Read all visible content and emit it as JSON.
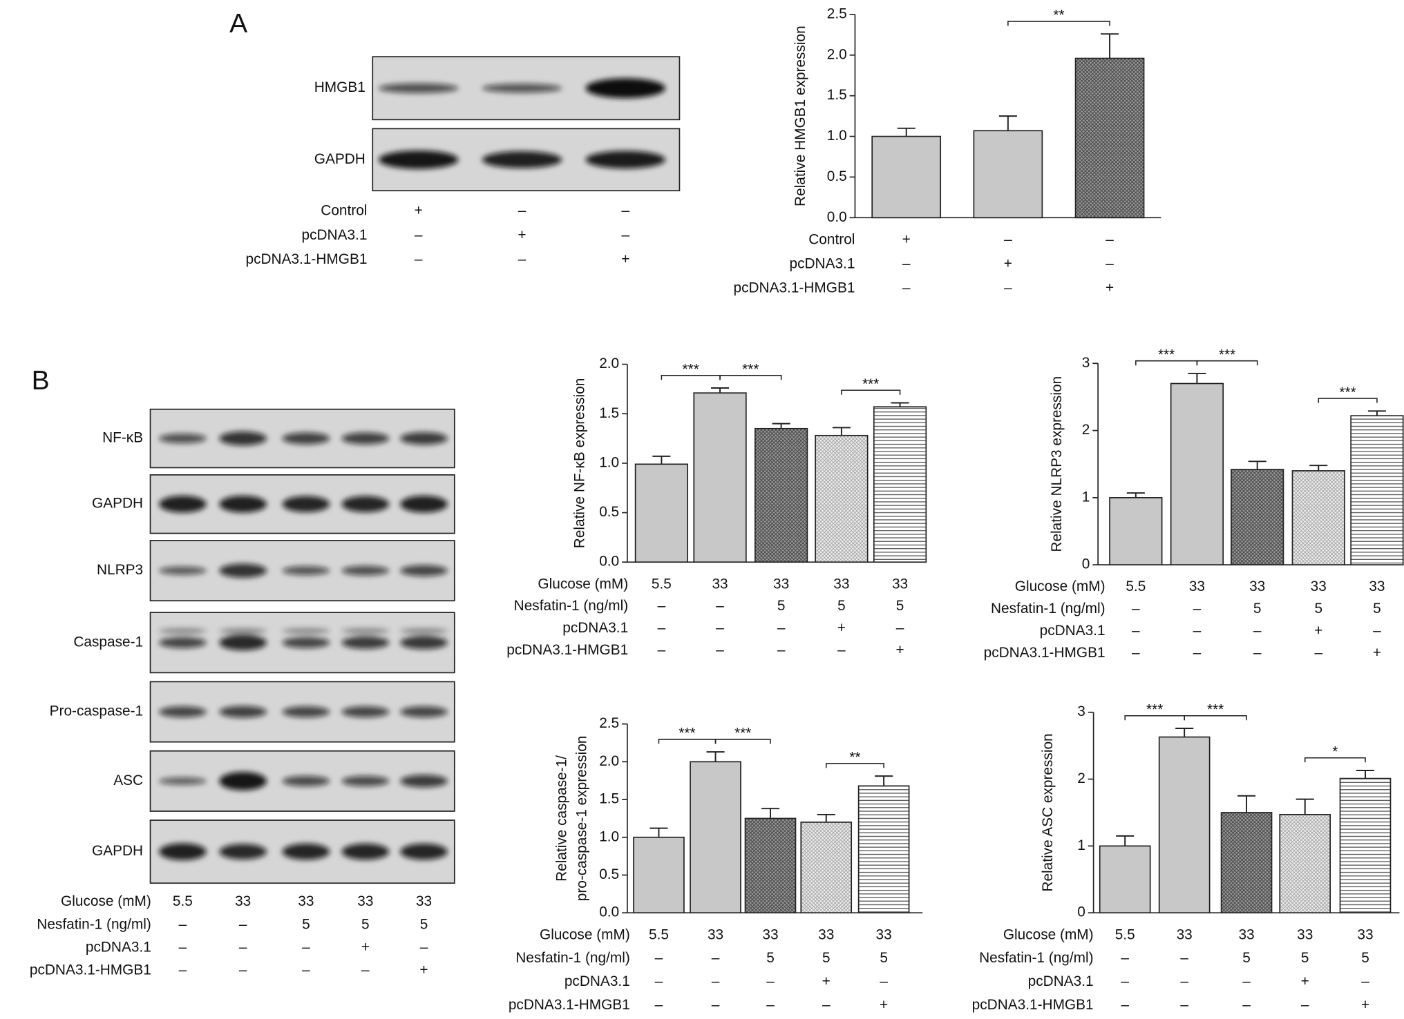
{
  "panel_labels": [
    "A",
    "B"
  ],
  "blot_a": {
    "rows": [
      "HMGB1",
      "GAPDH"
    ],
    "conditions": [
      {
        "name": "Control",
        "marks": [
          "+",
          "–",
          "–"
        ]
      },
      {
        "name": "pcDNA3.1",
        "marks": [
          "–",
          "+",
          "–"
        ]
      },
      {
        "name": "pcDNA3.1-HMGB1",
        "marks": [
          "–",
          "–",
          "+"
        ]
      }
    ]
  },
  "blot_b": {
    "rows": [
      "NF-κB",
      "GAPDH",
      "NLRP3",
      "Caspase-1",
      "Pro-caspase-1",
      "ASC",
      "GAPDH"
    ],
    "conditions": [
      {
        "name": "Glucose (mM)",
        "marks": [
          "5.5",
          "33",
          "33",
          "33",
          "33"
        ]
      },
      {
        "name": "Nesfatin-1 (ng/ml)",
        "marks": [
          "–",
          "–",
          "5",
          "5",
          "5"
        ]
      },
      {
        "name": "pcDNA3.1",
        "marks": [
          "–",
          "–",
          "–",
          "+",
          "–"
        ]
      },
      {
        "name": "pcDNA3.1-HMGB1",
        "marks": [
          "–",
          "–",
          "–",
          "–",
          "+"
        ]
      }
    ]
  },
  "chart_data": [
    {
      "type": "bar",
      "y_label": [
        "Relative HMGB1 expression"
      ],
      "values": [
        1.0,
        1.07,
        1.96
      ],
      "errors": [
        0.1,
        0.18,
        0.3
      ],
      "patterns": [
        "solid",
        "solid",
        "crosshatch"
      ],
      "color": "#c8c8c8",
      "ylim": [
        0,
        2.5
      ],
      "yticks": [
        {
          "value": 0,
          "label": "0.0"
        },
        0.5,
        {
          "value": 1,
          "label": "1.0"
        },
        1.5,
        {
          "value": 2,
          "label": "2.0"
        },
        2.5
      ],
      "significance": [
        {
          "from": 1,
          "to": 2,
          "label": "**"
        }
      ],
      "conditions": [
        {
          "name": "Control",
          "marks": [
            "+",
            "–",
            "–"
          ]
        },
        {
          "name": "pcDNA3.1",
          "marks": [
            "–",
            "+",
            "–"
          ]
        },
        {
          "name": "pcDNA3.1-HMGB1",
          "marks": [
            "–",
            "–",
            "+"
          ]
        }
      ]
    },
    {
      "type": "bar",
      "y_label": [
        "Relative NF-κB expression"
      ],
      "values": [
        0.99,
        1.71,
        1.35,
        1.28,
        1.57
      ],
      "errors": [
        0.08,
        0.05,
        0.05,
        0.08,
        0.04
      ],
      "patterns": [
        "solid",
        "solid",
        "crosshatch",
        "dots",
        "hlines"
      ],
      "color": "#c8c8c8",
      "ylim": [
        0,
        2
      ],
      "yticks": [
        {
          "value": 0,
          "label": "0.0"
        },
        0.5,
        {
          "value": 1,
          "label": "1.0"
        },
        1.5,
        {
          "value": 2,
          "label": "2.0"
        }
      ],
      "significance": [
        {
          "from": 0,
          "to": 1,
          "label": "***"
        },
        {
          "from": 1,
          "to": 2,
          "label": "***"
        },
        {
          "from": 3,
          "to": 4,
          "label": "***"
        }
      ],
      "conditions": [
        {
          "name": "Glucose (mM)",
          "marks": [
            "5.5",
            "33",
            "33",
            "33",
            "33"
          ]
        },
        {
          "name": "Nesfatin-1 (ng/ml)",
          "marks": [
            "–",
            "–",
            "5",
            "5",
            "5"
          ]
        },
        {
          "name": "pcDNA3.1",
          "marks": [
            "–",
            "–",
            "–",
            "+",
            "–"
          ]
        },
        {
          "name": "pcDNA3.1-HMGB1",
          "marks": [
            "–",
            "–",
            "–",
            "–",
            "+"
          ]
        }
      ]
    },
    {
      "type": "bar",
      "y_label": [
        "Relative NLRP3 expression"
      ],
      "values": [
        1.0,
        2.7,
        1.42,
        1.4,
        2.22
      ],
      "errors": [
        0.07,
        0.15,
        0.12,
        0.08,
        0.07
      ],
      "patterns": [
        "solid",
        "solid",
        "crosshatch",
        "dots",
        "hlines"
      ],
      "color": "#c8c8c8",
      "ylim": [
        0,
        3
      ],
      "yticks": [
        0,
        1,
        2,
        3
      ],
      "significance": [
        {
          "from": 0,
          "to": 1,
          "label": "***"
        },
        {
          "from": 1,
          "to": 2,
          "label": "***"
        },
        {
          "from": 3,
          "to": 4,
          "label": "***"
        }
      ],
      "conditions": [
        {
          "name": "Glucose (mM)",
          "marks": [
            "5.5",
            "33",
            "33",
            "33",
            "33"
          ]
        },
        {
          "name": "Nesfatin-1 (ng/ml)",
          "marks": [
            "–",
            "–",
            "5",
            "5",
            "5"
          ]
        },
        {
          "name": "pcDNA3.1",
          "marks": [
            "–",
            "–",
            "–",
            "+",
            "–"
          ]
        },
        {
          "name": "pcDNA3.1-HMGB1",
          "marks": [
            "–",
            "–",
            "–",
            "–",
            "+"
          ]
        }
      ]
    },
    {
      "type": "bar",
      "y_label": [
        "Relative caspase-1/",
        "pro-caspase-1 expression"
      ],
      "values": [
        1.0,
        2.0,
        1.25,
        1.2,
        1.68
      ],
      "errors": [
        0.12,
        0.13,
        0.13,
        0.1,
        0.13
      ],
      "patterns": [
        "solid",
        "solid",
        "crosshatch",
        "dots",
        "hlines"
      ],
      "color": "#c8c8c8",
      "ylim": [
        0,
        2.5
      ],
      "yticks": [
        {
          "value": 0,
          "label": "0.0"
        },
        0.5,
        {
          "value": 1,
          "label": "1.0"
        },
        1.5,
        {
          "value": 2,
          "label": "2.0"
        },
        2.5
      ],
      "significance": [
        {
          "from": 0,
          "to": 1,
          "label": "***"
        },
        {
          "from": 1,
          "to": 2,
          "label": "***"
        },
        {
          "from": 3,
          "to": 4,
          "label": "**"
        }
      ],
      "conditions": [
        {
          "name": "Glucose (mM)",
          "marks": [
            "5.5",
            "33",
            "33",
            "33",
            "33"
          ]
        },
        {
          "name": "Nesfatin-1 (ng/ml)",
          "marks": [
            "–",
            "–",
            "5",
            "5",
            "5"
          ]
        },
        {
          "name": "pcDNA3.1",
          "marks": [
            "–",
            "–",
            "–",
            "+",
            "–"
          ]
        },
        {
          "name": "pcDNA3.1-HMGB1",
          "marks": [
            "–",
            "–",
            "–",
            "–",
            "+"
          ]
        }
      ]
    },
    {
      "type": "bar",
      "y_label": [
        "Relative ASC expression"
      ],
      "values": [
        1.0,
        2.63,
        1.5,
        1.47,
        2.01
      ],
      "errors": [
        0.15,
        0.13,
        0.25,
        0.23,
        0.12
      ],
      "patterns": [
        "solid",
        "solid",
        "crosshatch",
        "dots",
        "hlines"
      ],
      "color": "#c8c8c8",
      "ylim": [
        0,
        3
      ],
      "yticks": [
        0,
        1,
        2,
        3
      ],
      "significance": [
        {
          "from": 0,
          "to": 1,
          "label": "***"
        },
        {
          "from": 1,
          "to": 2,
          "label": "***"
        },
        {
          "from": 3,
          "to": 4,
          "label": "*"
        }
      ],
      "conditions": [
        {
          "name": "Glucose (mM)",
          "marks": [
            "5.5",
            "33",
            "33",
            "33",
            "33"
          ]
        },
        {
          "name": "Nesfatin-1 (ng/ml)",
          "marks": [
            "–",
            "–",
            "5",
            "5",
            "5"
          ]
        },
        {
          "name": "pcDNA3.1",
          "marks": [
            "–",
            "–",
            "–",
            "+",
            "–"
          ]
        },
        {
          "name": "pcDNA3.1-HMGB1",
          "marks": [
            "–",
            "–",
            "–",
            "–",
            "+"
          ]
        }
      ]
    }
  ]
}
